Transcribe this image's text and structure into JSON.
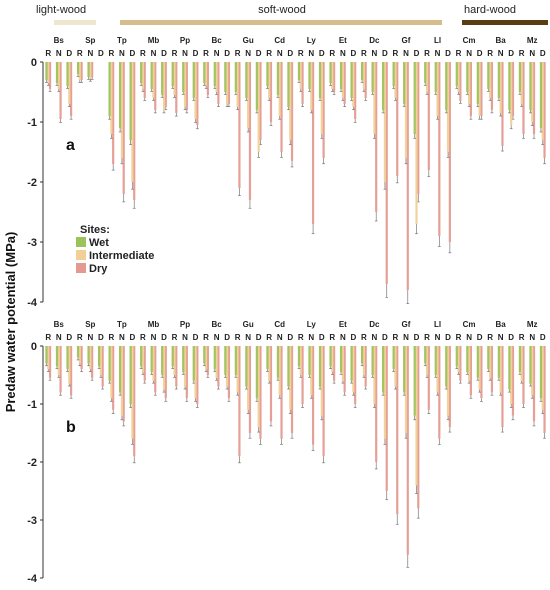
{
  "wood_groups": [
    {
      "label": "light-wood",
      "color": "#efe6cf"
    },
    {
      "label": "soft-wood",
      "color": "#d8bd8c"
    },
    {
      "label": "hard-wood",
      "color": "#5a3d12"
    }
  ],
  "legend": {
    "title": "Sites:",
    "items": [
      {
        "label": "Wet",
        "color": "#9cc25a"
      },
      {
        "label": "Intermediate",
        "color": "#f2cf96"
      },
      {
        "label": "Dry",
        "color": "#e49a90"
      }
    ]
  },
  "ylabel": "Predaw water potential (MPa)",
  "colors": {
    "wet": "#9cc25a",
    "intermediate": "#f2cf96",
    "dry": "#e49a90",
    "errorbar": "#777777"
  },
  "chart_data": [
    {
      "type": "bar",
      "panel_label": "a",
      "ylim": [
        -4,
        0
      ],
      "yticks": [
        "0",
        "-1",
        "-2",
        "-3",
        "-4"
      ],
      "species": [
        "Bs",
        "Sp",
        "Tp",
        "Mb",
        "Pp",
        "Bc",
        "Gu",
        "Cd",
        "Ly",
        "Et",
        "Dc",
        "Gf",
        "Ll",
        "Cm",
        "Ba",
        "Mz"
      ],
      "conditions": [
        "R",
        "N",
        "D"
      ],
      "series": [
        {
          "name": "Wet",
          "values": [
            [
              -0.3,
              -0.35,
              -0.4
            ],
            [
              -0.2,
              -0.25,
              null
            ],
            [
              -0.9,
              -1.1,
              -1.3
            ],
            [
              -0.35,
              -0.45,
              -0.55
            ],
            [
              -0.4,
              -0.5,
              -0.6
            ],
            [
              -0.35,
              -0.4,
              -0.5
            ],
            [
              -0.5,
              -0.6,
              -0.8
            ],
            [
              -0.4,
              -0.55,
              -0.75
            ],
            [
              -0.3,
              -0.45,
              -0.6
            ],
            [
              -0.35,
              -0.45,
              -0.6
            ],
            [
              -0.3,
              -0.5,
              -0.8
            ],
            [
              -0.4,
              -0.7,
              -1.2
            ],
            [
              -0.35,
              -0.5,
              -0.8
            ],
            [
              -0.4,
              -0.5,
              -0.7
            ],
            [
              -0.45,
              -0.6,
              -0.8
            ],
            [
              -0.5,
              -0.8,
              -1.1
            ]
          ]
        },
        {
          "name": "Intermediate",
          "values": [
            [
              -0.35,
              -0.45,
              -0.7
            ],
            [
              -0.3,
              -0.28,
              null
            ],
            [
              -1.2,
              -1.6,
              -2.0
            ],
            [
              -0.45,
              -0.6,
              -0.8
            ],
            [
              -0.55,
              -0.75,
              -0.95
            ],
            [
              -0.4,
              -0.5,
              -0.7
            ],
            [
              -0.75,
              -1.1,
              -1.5
            ],
            [
              -0.6,
              -0.9,
              -1.3
            ],
            [
              -0.45,
              -0.8,
              -1.2
            ],
            [
              -0.45,
              -0.6,
              -0.75
            ],
            [
              -0.45,
              -1.2,
              -2.0
            ],
            [
              -0.6,
              -1.6,
              -2.7
            ],
            [
              -0.5,
              -0.9,
              -1.5
            ],
            [
              -0.5,
              -0.7,
              -0.9
            ],
            [
              -0.6,
              -0.85,
              -1.05
            ],
            [
              -0.7,
              -1.0,
              -1.3
            ]
          ]
        },
        {
          "name": "Dry",
          "values": [
            [
              -0.45,
              -0.95,
              -0.9
            ],
            [
              -0.3,
              -0.25,
              null
            ],
            [
              -1.7,
              -2.2,
              -2.3
            ],
            [
              -0.6,
              -0.8,
              -0.75
            ],
            [
              -0.85,
              -0.8,
              -1.05
            ],
            [
              -0.55,
              -0.7,
              -0.7
            ],
            [
              -2.1,
              -2.3,
              -1.3
            ],
            [
              -1.0,
              -1.5,
              -1.65
            ],
            [
              -0.7,
              -2.7,
              -1.6
            ],
            [
              -0.5,
              -0.7,
              -0.95
            ],
            [
              -0.6,
              -2.5,
              -3.7
            ],
            [
              -1.9,
              -3.8,
              -2.2
            ],
            [
              -1.8,
              -2.9,
              -3.0
            ],
            [
              -0.65,
              -0.9,
              -0.9
            ],
            [
              -0.8,
              -1.4,
              -0.9
            ],
            [
              -1.2,
              -1.2,
              -1.6
            ]
          ]
        }
      ]
    },
    {
      "type": "bar",
      "panel_label": "b",
      "ylim": [
        -4,
        0
      ],
      "yticks": [
        "0",
        "-1",
        "-2",
        "-3",
        "-4"
      ],
      "species": [
        "Bs",
        "Sp",
        "Tp",
        "Mb",
        "Pp",
        "Bc",
        "Gu",
        "Cd",
        "Ly",
        "Et",
        "Dc",
        "Gf",
        "Ll",
        "Cm",
        "Ba",
        "Mz"
      ],
      "conditions": [
        "R",
        "N",
        "D"
      ],
      "series": [
        {
          "name": "Wet",
          "values": [
            [
              -0.3,
              -0.35,
              -0.4
            ],
            [
              -0.2,
              -0.3,
              -0.35
            ],
            [
              -0.6,
              -0.8,
              -1.0
            ],
            [
              -0.35,
              -0.45,
              -0.5
            ],
            [
              -0.35,
              -0.45,
              -0.6
            ],
            [
              -0.3,
              -0.4,
              -0.5
            ],
            [
              -0.5,
              -0.7,
              -0.9
            ],
            [
              -0.4,
              -0.55,
              -0.7
            ],
            [
              -0.35,
              -0.5,
              -0.7
            ],
            [
              -0.35,
              -0.45,
              -0.6
            ],
            [
              -0.3,
              -0.5,
              -0.8
            ],
            [
              -0.4,
              -0.8,
              -1.2
            ],
            [
              -0.3,
              -0.5,
              -0.7
            ],
            [
              -0.35,
              -0.45,
              -0.55
            ],
            [
              -0.4,
              -0.55,
              -0.75
            ],
            [
              -0.45,
              -0.65,
              -0.9
            ]
          ]
        },
        {
          "name": "Intermediate",
          "values": [
            [
              -0.4,
              -0.5,
              -0.65
            ],
            [
              -0.3,
              -0.4,
              -0.5
            ],
            [
              -0.9,
              -1.2,
              -1.6
            ],
            [
              -0.45,
              -0.6,
              -0.75
            ],
            [
              -0.5,
              -0.7,
              -0.9
            ],
            [
              -0.4,
              -0.55,
              -0.7
            ],
            [
              -0.8,
              -1.1,
              -1.4
            ],
            [
              -0.6,
              -0.85,
              -1.1
            ],
            [
              -0.5,
              -0.85,
              -1.2
            ],
            [
              -0.45,
              -0.6,
              -0.8
            ],
            [
              -0.5,
              -1.0,
              -1.6
            ],
            [
              -0.7,
              -1.5,
              -2.4
            ],
            [
              -0.5,
              -0.8,
              -1.2
            ],
            [
              -0.45,
              -0.6,
              -0.75
            ],
            [
              -0.55,
              -0.8,
              -1.0
            ],
            [
              -0.6,
              -0.85,
              -1.1
            ]
          ]
        },
        {
          "name": "Dry",
          "values": [
            [
              -0.55,
              -0.8,
              -0.85
            ],
            [
              -0.4,
              -0.55,
              -0.7
            ],
            [
              -1.1,
              -1.3,
              -1.9
            ],
            [
              -0.6,
              -0.8,
              -0.9
            ],
            [
              -0.7,
              -0.9,
              -1.0
            ],
            [
              -0.5,
              -0.7,
              -0.9
            ],
            [
              -1.9,
              -1.5,
              -1.6
            ],
            [
              -1.3,
              -1.6,
              -1.5
            ],
            [
              -1.0,
              -1.7,
              -1.9
            ],
            [
              -0.6,
              -0.8,
              -1.0
            ],
            [
              -0.7,
              -2.0,
              -2.5
            ],
            [
              -2.9,
              -3.6,
              -2.8
            ],
            [
              -1.1,
              -1.6,
              -1.4
            ],
            [
              -0.6,
              -0.85,
              -0.9
            ],
            [
              -0.8,
              -1.4,
              -1.2
            ],
            [
              -1.0,
              -1.3,
              -1.5
            ]
          ]
        }
      ]
    }
  ]
}
